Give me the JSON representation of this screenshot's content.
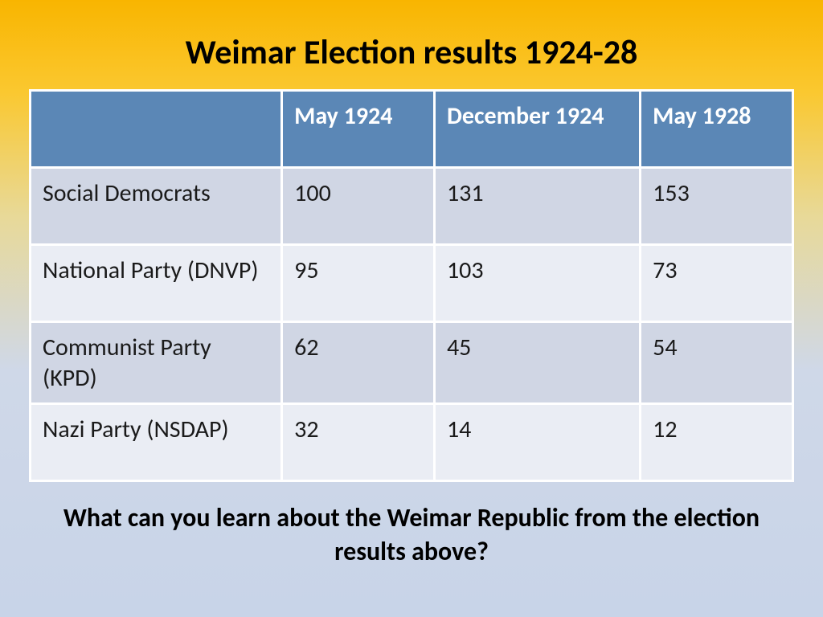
{
  "title": "Weimar Election results 1924-28",
  "question": "What can you learn about the Weimar Republic from the election results above?",
  "table": {
    "header_bg": "#5b87b6",
    "header_fg": "#ffffff",
    "row_odd_bg": "#d0d6e4",
    "row_even_bg": "#eaedf4",
    "cell_fg": "#1a1a1a",
    "border_color": "#ffffff",
    "columns": [
      "",
      "May 1924",
      "December 1924",
      "May 1928"
    ],
    "rows": [
      [
        "Social Democrats",
        "100",
        "131",
        "153"
      ],
      [
        "National Party (DNVP)",
        "95",
        "103",
        "73"
      ],
      [
        "Communist Party (KPD)",
        "62",
        "45",
        "54"
      ],
      [
        "Nazi Party (NSDAP)",
        "32",
        "14",
        "12"
      ]
    ]
  }
}
